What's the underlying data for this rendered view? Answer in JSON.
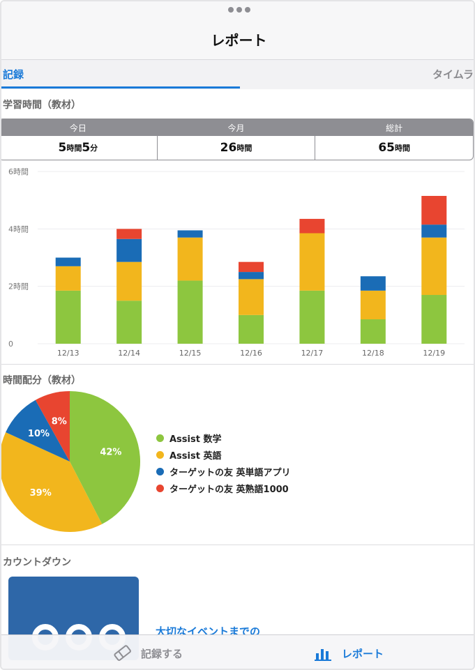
{
  "nav": {
    "title": "レポート"
  },
  "tabs": [
    {
      "label": "記録"
    },
    {
      "label": "タイムラ"
    }
  ],
  "study_time": {
    "title": "学習時間（教材）",
    "stats": [
      {
        "label": "今日",
        "h": "5",
        "h_unit": "時間",
        "m": "5",
        "m_unit": "分"
      },
      {
        "label": "今月",
        "h": "26",
        "h_unit": "時間"
      },
      {
        "label": "総計",
        "h": "65",
        "h_unit": "時間"
      }
    ]
  },
  "distribution": {
    "title": "時間配分（教材）"
  },
  "countdown": {
    "title": "カウントダウン",
    "link": "大切なイベントまでの"
  },
  "tabbar": {
    "record_label": "記録する",
    "report_label": "レポート"
  },
  "colors": {
    "accent": "#1a7ad8",
    "math": "#8dc63f",
    "english": "#f2b61d",
    "app_words": "#1a6cb6",
    "app_1000": "#e84530"
  },
  "icons": {
    "record": "eraser-icon",
    "report": "bar-chart-icon"
  },
  "chart_data": [
    {
      "type": "bar",
      "stacked": true,
      "categories": [
        "12/13",
        "12/14",
        "12/15",
        "12/16",
        "12/17",
        "12/18",
        "12/19"
      ],
      "ytick_labels": [
        "0",
        "2時間",
        "4時間",
        "6時間"
      ],
      "yticks": [
        0,
        2,
        4,
        6
      ],
      "ylim": [
        0,
        6
      ],
      "grid": true,
      "series": [
        {
          "name": "Assist 数学",
          "color": "#8dc63f",
          "values": [
            1.85,
            1.5,
            2.2,
            1.0,
            1.85,
            0.85,
            1.7
          ]
        },
        {
          "name": "Assist 英語",
          "color": "#f2b61d",
          "values": [
            0.85,
            1.35,
            1.5,
            1.25,
            2.0,
            1.0,
            2.0
          ]
        },
        {
          "name": "ターゲットの友 英単語アプリ",
          "color": "#1a6cb6",
          "values": [
            0.3,
            0.8,
            0.25,
            0.25,
            0.0,
            0.5,
            0.45
          ]
        },
        {
          "name": "ターゲットの友 英熟語1000",
          "color": "#e84530",
          "values": [
            0.0,
            0.35,
            0.0,
            0.35,
            0.5,
            0.0,
            1.0
          ]
        }
      ]
    },
    {
      "type": "pie",
      "labels": [
        "Assist 数学",
        "Assist 英語",
        "ターゲットの友 英単語アプリ",
        "ターゲットの友 英熟語1000"
      ],
      "values": [
        42,
        39,
        10,
        8
      ],
      "value_labels": [
        "42%",
        "39%",
        "10%",
        "8%"
      ],
      "colors": [
        "#8dc63f",
        "#f2b61d",
        "#1a6cb6",
        "#e84530"
      ],
      "legend": "right"
    }
  ]
}
